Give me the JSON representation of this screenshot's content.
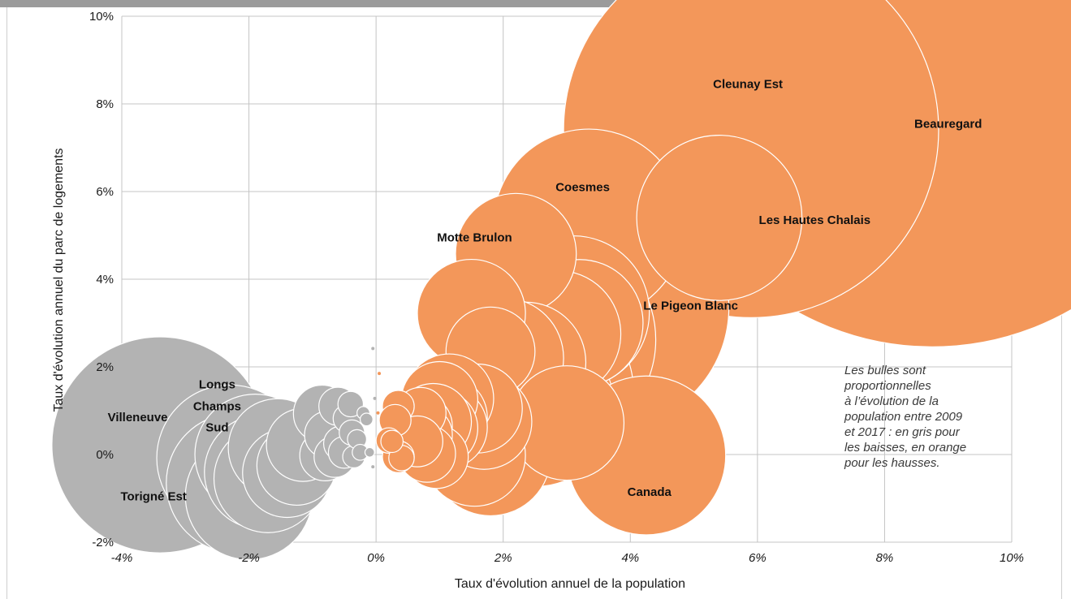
{
  "chart_data": {
    "type": "scatter",
    "subtype": "bubble",
    "xlabel": "Taux d'évolution annuel de la population",
    "ylabel": "Taux d'évolution annuel du parc de logements",
    "xlim": [
      -4,
      10
    ],
    "ylim": [
      -2,
      10
    ],
    "x_ticks": [
      "-4%",
      "-2%",
      "0%",
      "2%",
      "4%",
      "6%",
      "8%",
      "10%"
    ],
    "y_ticks": [
      "-2%",
      "0%",
      "2%",
      "4%",
      "6%",
      "8%",
      "10%"
    ],
    "x_unit": "%",
    "y_unit": "%",
    "grid": true,
    "colors": {
      "decrease": "#b3b3b3",
      "increase": "#f3975a",
      "bubble_edge": "#ffffff",
      "grid": "#c4c4c4"
    },
    "note_lines": [
      "Les bulles sont",
      "proportionnelles",
      "à l’évolution de la",
      "population entre 2009",
      "et 2017 : en gris pour",
      "les baisses, en orange",
      "pour les hausses."
    ],
    "series": [
      {
        "group": "decrease",
        "color": "#b3b3b3",
        "points": [
          {
            "x": -3.4,
            "y": 0.22,
            "size": 3.4
          },
          {
            "x": -2.3,
            "y": -0.08,
            "size": 2.3
          },
          {
            "x": -2.2,
            "y": -0.65,
            "size": 2.2
          },
          {
            "x": -2.0,
            "y": -0.95,
            "size": 2.0
          },
          {
            "x": -1.9,
            "y": 0.0,
            "size": 1.9
          },
          {
            "x": -1.8,
            "y": -0.4,
            "size": 1.8
          },
          {
            "x": -1.7,
            "y": -0.55,
            "size": 1.7
          },
          {
            "x": -1.55,
            "y": 0.15,
            "size": 1.55
          },
          {
            "x": -1.4,
            "y": -0.42,
            "size": 1.4
          },
          {
            "x": -1.25,
            "y": -0.25,
            "size": 1.25
          },
          {
            "x": -1.15,
            "y": 0.22,
            "size": 1.15
          },
          {
            "x": -0.85,
            "y": 0.93,
            "size": 0.9
          },
          {
            "x": -0.8,
            "y": -0.02,
            "size": 0.8
          },
          {
            "x": -0.75,
            "y": 0.45,
            "size": 0.75
          },
          {
            "x": -0.65,
            "y": -0.05,
            "size": 0.65
          },
          {
            "x": -0.6,
            "y": 1.1,
            "size": 0.6
          },
          {
            "x": -0.55,
            "y": 0.25,
            "size": 0.55
          },
          {
            "x": -0.5,
            "y": 0.05,
            "size": 0.5
          },
          {
            "x": -0.45,
            "y": 0.82,
            "size": 0.45
          },
          {
            "x": -0.4,
            "y": 1.15,
            "size": 0.4
          },
          {
            "x": -0.38,
            "y": 0.5,
            "size": 0.4
          },
          {
            "x": -0.35,
            "y": -0.05,
            "size": 0.35
          },
          {
            "x": -0.3,
            "y": 0.35,
            "size": 0.3
          },
          {
            "x": -0.25,
            "y": 0.05,
            "size": 0.25
          },
          {
            "x": -0.2,
            "y": 0.95,
            "size": 0.2
          },
          {
            "x": -0.15,
            "y": 0.8,
            "size": 0.2
          },
          {
            "x": -0.1,
            "y": 0.05,
            "size": 0.15
          },
          {
            "x": -0.05,
            "y": 2.42,
            "size": 0.05
          },
          {
            "x": -0.05,
            "y": -0.28,
            "size": 0.05
          },
          {
            "x": -0.02,
            "y": 1.28,
            "size": 0.03
          }
        ]
      },
      {
        "group": "increase",
        "color": "#f3975a",
        "points": [
          {
            "x": 8.75,
            "y": 8.8,
            "size": 8.75
          },
          {
            "x": 5.9,
            "y": 7.4,
            "size": 5.9
          },
          {
            "x": 5.4,
            "y": 5.4,
            "size": 2.6
          },
          {
            "x": 3.35,
            "y": 5.25,
            "size": 3.0
          },
          {
            "x": 2.2,
            "y": 4.58,
            "size": 1.9
          },
          {
            "x": 3.65,
            "y": 3.35,
            "size": 3.8
          },
          {
            "x": 3.1,
            "y": 3.25,
            "size": 2.4
          },
          {
            "x": 3.2,
            "y": 3.0,
            "size": 2.0
          },
          {
            "x": 1.5,
            "y": 3.22,
            "size": 1.7
          },
          {
            "x": 2.7,
            "y": 2.62,
            "size": 3.4
          },
          {
            "x": 2.85,
            "y": 2.75,
            "size": 2.0
          },
          {
            "x": 2.35,
            "y": 2.1,
            "size": 1.9
          },
          {
            "x": 2.0,
            "y": 2.2,
            "size": 1.9
          },
          {
            "x": 1.8,
            "y": 2.35,
            "size": 1.4
          },
          {
            "x": 2.6,
            "y": 1.45,
            "size": 2.9
          },
          {
            "x": 2.5,
            "y": 1.08,
            "size": 2.5
          },
          {
            "x": 3.0,
            "y": 0.72,
            "size": 1.8
          },
          {
            "x": 4.25,
            "y": -0.02,
            "size": 2.5
          },
          {
            "x": 1.8,
            "y": -0.02,
            "size": 1.9
          },
          {
            "x": 1.55,
            "y": -0.02,
            "size": 1.6
          },
          {
            "x": 1.6,
            "y": 1.05,
            "size": 1.4
          },
          {
            "x": 1.7,
            "y": 0.75,
            "size": 1.5
          },
          {
            "x": 1.15,
            "y": 1.28,
            "size": 1.4
          },
          {
            "x": 1.0,
            "y": 1.25,
            "size": 1.2
          },
          {
            "x": 1.0,
            "y": 0.6,
            "size": 1.2
          },
          {
            "x": 1.1,
            "y": 0.85,
            "size": 1.3
          },
          {
            "x": 0.9,
            "y": 0.75,
            "size": 1.2
          },
          {
            "x": 1.1,
            "y": 0.62,
            "size": 1.3
          },
          {
            "x": 0.7,
            "y": 0.65,
            "size": 1.0
          },
          {
            "x": 0.75,
            "y": 0.45,
            "size": 0.9
          },
          {
            "x": 0.7,
            "y": 0.95,
            "size": 0.8
          },
          {
            "x": 0.65,
            "y": 0.3,
            "size": 0.8
          },
          {
            "x": 0.8,
            "y": 0.02,
            "size": 0.9
          },
          {
            "x": 0.95,
            "y": -0.05,
            "size": 1.0
          },
          {
            "x": 0.35,
            "y": 1.1,
            "size": 0.5
          },
          {
            "x": 0.3,
            "y": 0.78,
            "size": 0.5
          },
          {
            "x": 0.2,
            "y": 0.32,
            "size": 0.4
          },
          {
            "x": 0.25,
            "y": 0.3,
            "size": 0.35
          },
          {
            "x": 0.35,
            "y": -0.05,
            "size": 0.5
          },
          {
            "x": 0.4,
            "y": -0.08,
            "size": 0.4
          },
          {
            "x": 0.05,
            "y": 1.85,
            "size": 0.05
          },
          {
            "x": 0.03,
            "y": 0.95,
            "size": 0.05
          }
        ]
      }
    ],
    "annotations": [
      {
        "text": "Beauregard",
        "x": 9.0,
        "y": 7.55
      },
      {
        "text": "Cleunay Est",
        "x": 5.85,
        "y": 8.45
      },
      {
        "text": "Coesmes",
        "x": 3.25,
        "y": 6.1
      },
      {
        "text": "Les Hautes Chalais",
        "x": 6.9,
        "y": 5.35
      },
      {
        "text": "Motte Brulon",
        "x": 1.55,
        "y": 4.95
      },
      {
        "text": "Le Pigeon Blanc",
        "x": 4.95,
        "y": 3.4
      },
      {
        "text": "Canada",
        "x": 4.3,
        "y": -0.85
      },
      {
        "text": "Longs",
        "x": -2.5,
        "y": 1.6
      },
      {
        "text": "Champs",
        "x": -2.5,
        "y": 1.1
      },
      {
        "text": "Sud",
        "x": -2.5,
        "y": 0.62
      },
      {
        "text": "Villeneuve",
        "x": -3.75,
        "y": 0.85
      },
      {
        "text": "Torigné Est",
        "x": -3.5,
        "y": -0.95
      }
    ]
  }
}
